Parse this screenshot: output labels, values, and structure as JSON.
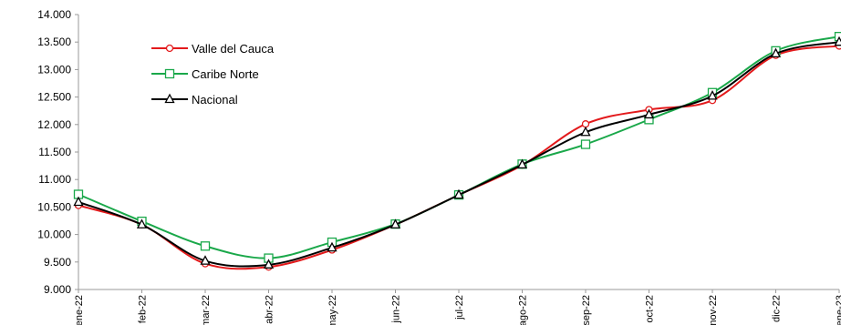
{
  "chart_data": {
    "type": "line",
    "categories": [
      "ene-22",
      "feb-22",
      "mar-22",
      "abr-22",
      "may-22",
      "jun-22",
      "jul-22",
      "ago-22",
      "sep-22",
      "oct-22",
      "nov-22",
      "dic-22",
      "ene-23"
    ],
    "y_tick_labels": [
      "9.000",
      "9.500",
      "10.000",
      "10.500",
      "11.000",
      "11.500",
      "12.000",
      "12.500",
      "13.000",
      "13.500",
      "14.000"
    ],
    "ylim": [
      9000,
      14000
    ],
    "grid": false,
    "legend_position": "top-left",
    "series": [
      {
        "name": "Valle del Cauca",
        "color": "#e31a1c",
        "marker": "circle",
        "values": [
          10530,
          10180,
          9470,
          9410,
          9720,
          10180,
          10720,
          11260,
          12010,
          12270,
          12440,
          13260,
          13430
        ]
      },
      {
        "name": "Caribe Norte",
        "color": "#1aa84a",
        "marker": "square",
        "values": [
          10730,
          10240,
          9790,
          9570,
          9860,
          10190,
          10720,
          11280,
          11640,
          12090,
          12580,
          13340,
          13600
        ]
      },
      {
        "name": "Nacional",
        "color": "#000000",
        "marker": "triangle",
        "values": [
          10590,
          10180,
          9520,
          9450,
          9760,
          10180,
          10720,
          11270,
          11860,
          12180,
          12520,
          13290,
          13500
        ]
      }
    ]
  }
}
